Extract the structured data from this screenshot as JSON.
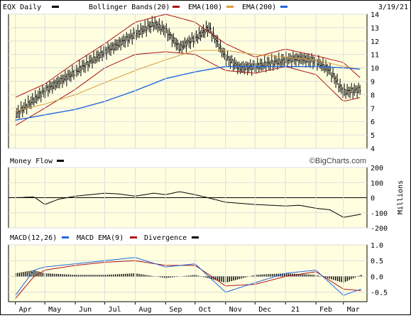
{
  "header": {
    "symbol_label": "EQX Daily",
    "date_label": "3/19/21",
    "bands_label": "Bollinger Bands(20)",
    "ema100_label": "EMA(100)",
    "ema200_label": "EMA(200)"
  },
  "money_flow": {
    "label": "Money Flow",
    "axis_unit": "Millions",
    "watermark": "©BigCharts.com"
  },
  "macd": {
    "label": "MACD(12,26)",
    "ema_label": "MACD EMA(9)",
    "divergence_label": "Divergence"
  },
  "colors": {
    "panel_bg": "#ffffe0",
    "grid": "#dddddd",
    "price": "#000000",
    "bollinger": "#aa1111",
    "ema100": "#d99a3c",
    "ema200": "#2266dd",
    "macd_line": "#2266dd",
    "macd_signal": "#aa1111",
    "divergence": "#000000"
  },
  "chart_data": [
    {
      "type": "ohlc",
      "panel": "price",
      "title": "EQX Daily",
      "date_range": [
        "2020-04",
        "2021-03-19"
      ],
      "x_ticks": [
        "Apr",
        "May",
        "Jun",
        "Jul",
        "Aug",
        "Sep",
        "Oct",
        "Nov",
        "Dec",
        "21",
        "Feb",
        "Mar"
      ],
      "y_ticks": [
        4,
        5,
        6,
        7,
        8,
        9,
        10,
        11,
        12,
        13,
        14
      ],
      "ylim": [
        4,
        14
      ],
      "grid": true,
      "legend": "top",
      "series": [
        {
          "name": "Price",
          "x": [
            "2020-04-01",
            "2020-05-01",
            "2020-06-01",
            "2020-07-01",
            "2020-08-01",
            "2020-08-20",
            "2020-09-01",
            "2020-09-15",
            "2020-10-01",
            "2020-10-15",
            "2020-11-01",
            "2020-11-15",
            "2020-12-01",
            "2021-01-01",
            "2021-01-15",
            "2021-02-01",
            "2021-02-15",
            "2021-03-01",
            "2021-03-19"
          ],
          "values": [
            6.5,
            8.3,
            9.7,
            11.2,
            12.5,
            13.3,
            12.8,
            11.5,
            12.2,
            13.0,
            10.8,
            10.0,
            10.1,
            10.6,
            10.7,
            10.5,
            9.8,
            8.2,
            8.4
          ]
        },
        {
          "name": "EMA(100)",
          "x": [
            "2020-04-01",
            "2020-05-01",
            "2020-06-01",
            "2020-07-01",
            "2020-08-01",
            "2020-09-01",
            "2020-10-01",
            "2020-11-01",
            "2020-12-01",
            "2021-01-01",
            "2021-02-01",
            "2021-03-01",
            "2021-03-19"
          ],
          "values": [
            6.8,
            7.3,
            8.0,
            8.9,
            9.8,
            10.6,
            11.3,
            11.3,
            11.0,
            10.8,
            10.6,
            10.1,
            9.9
          ]
        },
        {
          "name": "EMA(200)",
          "x": [
            "2020-04-01",
            "2020-05-01",
            "2020-06-01",
            "2020-07-01",
            "2020-08-01",
            "2020-09-01",
            "2020-10-01",
            "2020-11-01",
            "2020-12-01",
            "2021-01-01",
            "2021-02-01",
            "2021-03-01",
            "2021-03-19"
          ],
          "values": [
            6.1,
            6.5,
            6.9,
            7.5,
            8.3,
            9.2,
            9.7,
            10.1,
            10.1,
            10.1,
            10.1,
            10.0,
            9.9
          ]
        },
        {
          "name": "Bollinger Bands(20) upper",
          "x": [
            "2020-04-01",
            "2020-05-01",
            "2020-06-01",
            "2020-07-01",
            "2020-08-01",
            "2020-09-01",
            "2020-10-01",
            "2020-11-01",
            "2020-12-01",
            "2021-01-01",
            "2021-02-01",
            "2021-03-01",
            "2021-03-19"
          ],
          "values": [
            7.8,
            8.8,
            10.4,
            11.8,
            13.4,
            14.0,
            13.4,
            11.8,
            10.8,
            11.4,
            10.9,
            10.4,
            9.2
          ]
        },
        {
          "name": "Bollinger Bands(20) lower",
          "x": [
            "2020-04-01",
            "2020-05-01",
            "2020-06-01",
            "2020-07-01",
            "2020-08-01",
            "2020-09-01",
            "2020-10-01",
            "2020-11-01",
            "2020-12-01",
            "2021-01-01",
            "2021-02-01",
            "2021-03-01",
            "2021-03-19"
          ],
          "values": [
            5.7,
            7.0,
            8.4,
            10.0,
            11.0,
            11.2,
            11.0,
            9.8,
            9.6,
            10.1,
            9.5,
            7.5,
            7.8
          ]
        }
      ]
    },
    {
      "type": "line",
      "panel": "money_flow",
      "title": "Money Flow",
      "ylabel": "Millions",
      "y_ticks": [
        200,
        100,
        0,
        -100,
        -200
      ],
      "ylim": [
        -200,
        200
      ],
      "series": [
        {
          "name": "Money Flow",
          "x": [
            "2020-04-01",
            "2020-04-20",
            "2020-05-01",
            "2020-05-15",
            "2020-06-01",
            "2020-07-01",
            "2020-07-15",
            "2020-08-01",
            "2020-08-20",
            "2020-09-01",
            "2020-09-15",
            "2020-10-01",
            "2020-10-20",
            "2020-11-01",
            "2020-12-01",
            "2021-01-01",
            "2021-01-15",
            "2021-02-01",
            "2021-02-15",
            "2021-03-01",
            "2021-03-19"
          ],
          "values": [
            0,
            5,
            -45,
            -10,
            10,
            30,
            25,
            10,
            30,
            20,
            40,
            20,
            -10,
            -30,
            -45,
            -55,
            -50,
            -70,
            -80,
            -130,
            -110
          ]
        }
      ]
    },
    {
      "type": "line",
      "panel": "macd",
      "title": "MACD(12,26)",
      "y_ticks": [
        1.0,
        0.5,
        0.0,
        -0.5
      ],
      "ylim": [
        -0.8,
        1.0
      ],
      "series": [
        {
          "name": "MACD(12,26)",
          "x": [
            "2020-04-01",
            "2020-04-20",
            "2020-05-01",
            "2020-06-01",
            "2020-07-01",
            "2020-08-01",
            "2020-09-01",
            "2020-10-01",
            "2020-11-01",
            "2020-12-01",
            "2021-01-01",
            "2021-02-01",
            "2021-03-01",
            "2021-03-19"
          ],
          "values": [
            -0.6,
            0.2,
            0.3,
            0.4,
            0.5,
            0.6,
            0.3,
            0.4,
            -0.5,
            -0.2,
            0.1,
            0.2,
            -0.6,
            -0.4
          ]
        },
        {
          "name": "MACD EMA(9)",
          "x": [
            "2020-04-01",
            "2020-04-20",
            "2020-05-01",
            "2020-06-01",
            "2020-07-01",
            "2020-08-01",
            "2020-09-01",
            "2020-10-01",
            "2020-11-01",
            "2020-12-01",
            "2021-01-01",
            "2021-02-01",
            "2021-03-01",
            "2021-03-19"
          ],
          "values": [
            -0.7,
            0.0,
            0.2,
            0.35,
            0.45,
            0.5,
            0.35,
            0.35,
            -0.3,
            -0.25,
            0.0,
            0.15,
            -0.4,
            -0.45
          ]
        },
        {
          "name": "Divergence",
          "x": [
            "2020-04-01",
            "2020-04-20",
            "2020-05-01",
            "2020-06-01",
            "2020-07-01",
            "2020-08-01",
            "2020-09-01",
            "2020-10-01",
            "2020-11-01",
            "2020-12-01",
            "2021-01-01",
            "2021-02-01",
            "2021-03-01",
            "2021-03-19"
          ],
          "values": [
            0.1,
            0.2,
            0.1,
            0.05,
            0.05,
            0.1,
            -0.05,
            0.05,
            -0.2,
            0.05,
            0.1,
            0.05,
            -0.2,
            0.05
          ]
        }
      ]
    }
  ],
  "macd_axis": {
    "labels": [
      "1.0",
      "0.5",
      "0.0",
      "-0.5"
    ]
  }
}
